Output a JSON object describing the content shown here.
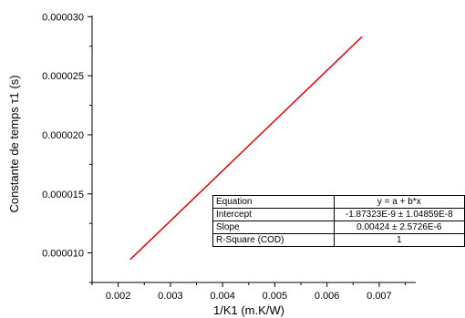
{
  "chart_data": {
    "type": "line",
    "xlabel": "1/K1 (m.K/W)",
    "ylabel": "Constante de temps τ1 (s)",
    "xlim": [
      0.0015,
      0.0077
    ],
    "ylim": [
      7.5e-06,
      3.01e-05
    ],
    "x_ticks": [
      0.002,
      0.003,
      0.004,
      0.005,
      0.006,
      0.007
    ],
    "x_tick_labels": [
      "0.002",
      "0.003",
      "0.004",
      "0.005",
      "0.006",
      "0.007"
    ],
    "y_ticks": [
      1e-05,
      1.5e-05,
      2e-05,
      2.5e-05,
      3e-05
    ],
    "y_tick_labels": [
      "0.000010",
      "0.000015",
      "0.000020",
      "0.000025",
      "0.000030"
    ],
    "grid": false,
    "series": [
      {
        "color": "#e8000b",
        "x": [
          0.00223,
          0.00667
        ],
        "y": [
          9.44e-06,
          2.83e-05
        ]
      }
    ]
  },
  "fit_table": {
    "rows": [
      {
        "key": "Equation",
        "value": "y = a + b*x"
      },
      {
        "key": "Intercept",
        "value": "-1.87323E-9 ± 1.04859E-8"
      },
      {
        "key": "Slope",
        "value": "0.00424 ± 2.5726E-6"
      },
      {
        "key": "R-Square (COD)",
        "value": "1"
      }
    ]
  }
}
